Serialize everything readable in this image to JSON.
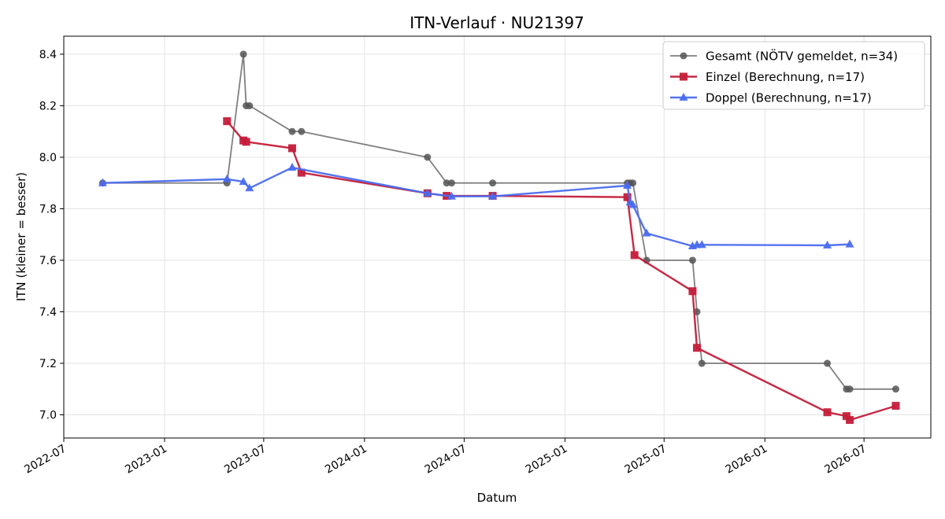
{
  "chart_data": {
    "type": "line",
    "title": "ITN-Verlauf · NU21397",
    "xlabel": "Datum",
    "ylabel": "ITN  (kleiner = besser)",
    "x_type": "date",
    "xlim": [
      "2022-07-01",
      "2026-10-31"
    ],
    "ylim": [
      6.91,
      8.47
    ],
    "x_ticks": [
      "2022-07-01",
      "2023-01-01",
      "2023-07-01",
      "2024-01-01",
      "2024-07-01",
      "2025-01-01",
      "2025-07-01",
      "2026-01-01",
      "2026-07-01"
    ],
    "x_tick_labels": [
      "2022-07",
      "2023-01",
      "2023-07",
      "2024-01",
      "2024-07",
      "2025-01",
      "2025-07",
      "2026-01",
      "2026-07"
    ],
    "y_ticks": [
      7.0,
      7.2,
      7.4,
      7.6,
      7.8,
      8.0,
      8.2,
      8.4
    ],
    "y_tick_labels": [
      "7.0",
      "7.2",
      "7.4",
      "7.6",
      "7.8",
      "8.0",
      "8.2",
      "8.4"
    ],
    "grid": true,
    "legend_position": "top-right",
    "series": [
      {
        "name": "Gesamt (NÖTV gemeldet, n=34)",
        "color": "#555555",
        "marker": "circle",
        "x": [
          "2022-09-10",
          "2023-04-25",
          "2023-05-25",
          "2023-05-30",
          "2023-06-05",
          "2023-08-22",
          "2023-09-08",
          "2024-04-25",
          "2024-05-30",
          "2024-06-08",
          "2024-08-22",
          "2025-04-25",
          "2025-04-30",
          "2025-05-05",
          "2025-05-30",
          "2025-08-22",
          "2025-08-30",
          "2025-09-08",
          "2026-04-25",
          "2026-05-30",
          "2026-06-05",
          "2026-08-28"
        ],
        "y": [
          7.9,
          7.9,
          8.4,
          8.2,
          8.2,
          8.1,
          8.1,
          8.0,
          7.9,
          7.9,
          7.9,
          7.9,
          7.9,
          7.9,
          7.6,
          7.6,
          7.4,
          7.2,
          7.2,
          7.1,
          7.1,
          7.1
        ]
      },
      {
        "name": "Einzel (Berechnung, n=17)",
        "color": "#c41e3a",
        "marker": "square",
        "x": [
          "2023-04-25",
          "2023-05-25",
          "2023-05-30",
          "2023-08-22",
          "2023-09-08",
          "2024-04-25",
          "2024-05-30",
          "2024-08-22",
          "2025-04-25",
          "2025-05-08",
          "2025-08-22",
          "2025-08-30",
          "2026-04-25",
          "2026-05-30",
          "2026-06-05",
          "2026-08-28"
        ],
        "y": [
          8.14,
          8.065,
          8.06,
          8.035,
          7.94,
          7.86,
          7.85,
          7.85,
          7.845,
          7.62,
          7.48,
          7.26,
          7.01,
          6.995,
          6.98,
          7.035
        ]
      },
      {
        "name": "Doppel (Berechnung, n=17)",
        "color": "#4a6cf0",
        "marker": "triangle",
        "x": [
          "2022-09-10",
          "2023-04-25",
          "2023-05-25",
          "2023-06-05",
          "2023-08-22",
          "2024-04-25",
          "2024-06-08",
          "2024-08-22",
          "2025-04-25",
          "2025-04-30",
          "2025-05-05",
          "2025-05-30",
          "2025-08-22",
          "2025-08-30",
          "2025-09-08",
          "2026-04-25",
          "2026-06-05"
        ],
        "y": [
          7.9,
          7.915,
          7.905,
          7.88,
          7.96,
          7.86,
          7.848,
          7.848,
          7.89,
          7.825,
          7.815,
          7.705,
          7.655,
          7.66,
          7.66,
          7.658,
          7.662
        ]
      }
    ]
  }
}
